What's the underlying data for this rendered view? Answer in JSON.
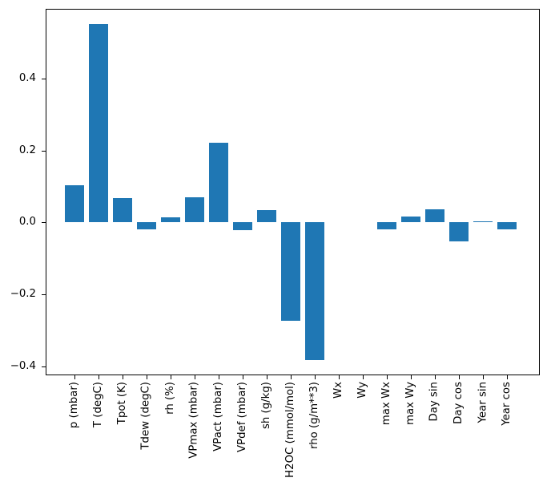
{
  "chart_data": {
    "type": "bar",
    "title": "",
    "xlabel": "",
    "ylabel": "",
    "categories": [
      "p (mbar)",
      "T (degC)",
      "Tpot (K)",
      "Tdew (degC)",
      "rh (%)",
      "VPmax (mbar)",
      "VPact (mbar)",
      "VPdef (mbar)",
      "sh (g/kg)",
      "H2OC (mmol/mol)",
      "rho (g/m**3)",
      "Wx",
      "Wy",
      "max Wx",
      "max Wy",
      "Day sin",
      "Day cos",
      "Year sin",
      "Year cos"
    ],
    "values": [
      0.102,
      0.551,
      0.067,
      -0.02,
      0.013,
      0.069,
      0.22,
      -0.022,
      0.033,
      -0.273,
      -0.384,
      0.0,
      0.0,
      -0.02,
      0.016,
      0.036,
      -0.054,
      0.002,
      -0.02
    ],
    "bar_color": "#1f77b4",
    "axis_color": "#000000",
    "background_color": "#ffffff",
    "ylim": [
      -0.422,
      0.591
    ],
    "yticks": [
      0.4,
      0.2,
      0.0,
      -0.2,
      -0.4
    ],
    "ytick_labels": [
      "0.4",
      "0.2",
      "0.0",
      "−0.2",
      "−0.4"
    ],
    "xtick_rotation_deg": 90,
    "grid": false,
    "legend_position": "none"
  }
}
